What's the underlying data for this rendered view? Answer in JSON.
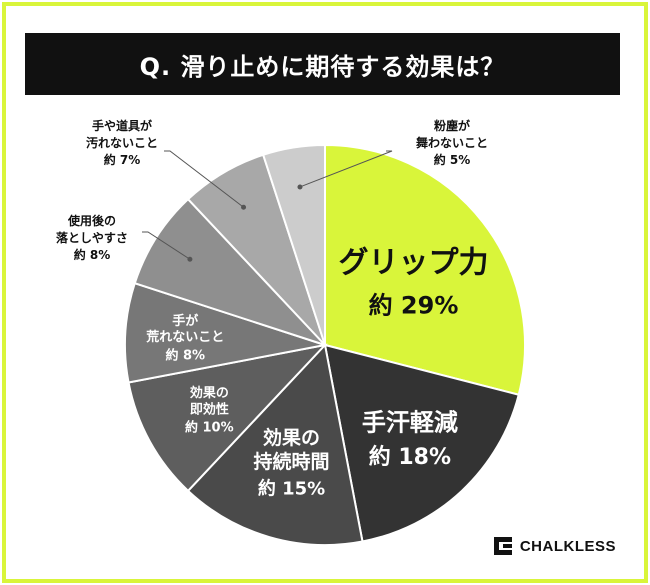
{
  "header": {
    "title": "Q. 滑り止めに期待する効果は？"
  },
  "brand": {
    "name": "CHALKLESS"
  },
  "chart_data": {
    "type": "pie",
    "title": "Q. 滑り止めに期待する効果は？",
    "start": "top, clockwise",
    "slices": [
      {
        "label_lines": [
          "グリップ力"
        ],
        "value_text": "約 29%",
        "value": 29,
        "color": "#d9f53a",
        "text_color": "#111111"
      },
      {
        "label_lines": [
          "手汗軽減"
        ],
        "value_text": "約 18%",
        "value": 18,
        "color": "#333333",
        "text_color": "#ffffff"
      },
      {
        "label_lines": [
          "効果の",
          "持続時間"
        ],
        "value_text": "約 15%",
        "value": 15,
        "color": "#4a4a4a",
        "text_color": "#ffffff"
      },
      {
        "label_lines": [
          "効果の",
          "即効性"
        ],
        "value_text": "約 10%",
        "value": 10,
        "color": "#5e5e5e",
        "text_color": "#ffffff"
      },
      {
        "label_lines": [
          "手が",
          "荒れないこと"
        ],
        "value_text": "約 8%",
        "value": 8,
        "color": "#777777",
        "text_color": "#ffffff"
      },
      {
        "label_lines": [
          "使用後の",
          "落としやすさ"
        ],
        "value_text": "約 8%",
        "value": 8,
        "color": "#8f8f8f",
        "text_color": "#111111"
      },
      {
        "label_lines": [
          "手や道具が",
          "汚れないこと"
        ],
        "value_text": "約 7%",
        "value": 7,
        "color": "#a8a8a8",
        "text_color": "#111111"
      },
      {
        "label_lines": [
          "粉塵が",
          "舞わないこと"
        ],
        "value_text": "約 5%",
        "value": 5,
        "color": "#cccccc",
        "text_color": "#111111"
      }
    ]
  }
}
